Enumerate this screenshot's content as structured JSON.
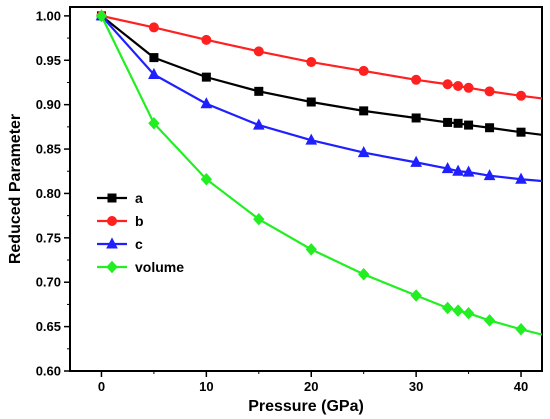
{
  "chart_data": {
    "type": "line",
    "title": "",
    "xlabel": "Pressure (GPa)",
    "ylabel": "Reduced Parameter",
    "xlim": [
      -3,
      42
    ],
    "ylim": [
      0.6,
      1.01
    ],
    "xticks": [
      "0",
      "10",
      "20",
      "30",
      "40"
    ],
    "yticks": [
      "0.60",
      "0.65",
      "0.70",
      "0.75",
      "0.80",
      "0.85",
      "0.90",
      "0.95",
      "1.00"
    ],
    "grid": false,
    "legend_position": "left-middle",
    "series": [
      {
        "name": "a",
        "color": "#000000",
        "marker": "square",
        "x": [
          0,
          5,
          10,
          15,
          20,
          25,
          30,
          33,
          34,
          35,
          37,
          40,
          42
        ],
        "y": [
          1.0,
          0.953,
          0.931,
          0.915,
          0.903,
          0.893,
          0.885,
          0.88,
          0.879,
          0.877,
          0.874,
          0.869,
          0.866
        ],
        "marker_indices": [
          0,
          1,
          2,
          3,
          4,
          5,
          6,
          7,
          8,
          9,
          10,
          11
        ]
      },
      {
        "name": "b",
        "color": "#ff2020",
        "marker": "circle",
        "x": [
          0,
          5,
          10,
          15,
          20,
          25,
          30,
          33,
          34,
          35,
          37,
          40,
          42
        ],
        "y": [
          1.0,
          0.987,
          0.973,
          0.96,
          0.948,
          0.938,
          0.928,
          0.923,
          0.921,
          0.919,
          0.915,
          0.91,
          0.907
        ],
        "marker_indices": [
          0,
          1,
          2,
          3,
          4,
          5,
          6,
          7,
          8,
          9,
          10,
          11
        ]
      },
      {
        "name": "c",
        "color": "#2020ff",
        "marker": "triangle",
        "x": [
          0,
          5,
          10,
          15,
          20,
          25,
          30,
          33,
          34,
          35,
          37,
          40,
          42
        ],
        "y": [
          1.0,
          0.934,
          0.901,
          0.877,
          0.86,
          0.846,
          0.835,
          0.828,
          0.825,
          0.824,
          0.82,
          0.816,
          0.814
        ],
        "marker_indices": [
          0,
          1,
          2,
          3,
          4,
          5,
          6,
          7,
          8,
          9,
          10,
          11
        ]
      },
      {
        "name": "volume",
        "color": "#22ee22",
        "marker": "diamond",
        "x": [
          0,
          5,
          10,
          15,
          20,
          25,
          30,
          33,
          34,
          35,
          37,
          40,
          42
        ],
        "y": [
          1.0,
          0.879,
          0.816,
          0.771,
          0.737,
          0.709,
          0.685,
          0.671,
          0.668,
          0.665,
          0.657,
          0.647,
          0.641
        ],
        "marker_indices": [
          0,
          1,
          2,
          3,
          4,
          5,
          6,
          7,
          8,
          9,
          10,
          11
        ]
      }
    ]
  }
}
